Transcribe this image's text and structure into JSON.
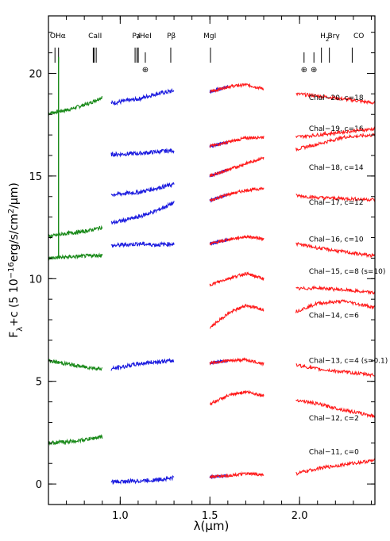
{
  "chart_data": {
    "type": "line",
    "title": "",
    "xlabel": "λ(μm)",
    "ylabel_main": "F",
    "ylabel_sub": "λ",
    "ylabel_rest": "+c (5 10",
    "ylabel_exp": "−16",
    "ylabel_units": "erg/s/cm",
    "ylabel_sq": "2",
    "ylabel_end": "/μm)",
    "xlim": [
      0.6,
      2.42
    ],
    "ylim": [
      -1.0,
      22.8
    ],
    "grid": false,
    "legend": "none",
    "x_ticks": [
      {
        "value": 1.0,
        "label": "1.0"
      },
      {
        "value": 1.5,
        "label": "1.5"
      },
      {
        "value": 2.0,
        "label": "2.0"
      }
    ],
    "y_ticks": [
      {
        "value": 0,
        "label": "0"
      },
      {
        "value": 5,
        "label": "5"
      },
      {
        "value": 10,
        "label": "10"
      },
      {
        "value": 15,
        "label": "15"
      },
      {
        "value": 20,
        "label": "20"
      }
    ],
    "colors": {
      "optical": "#1a8a1a",
      "j_band": "#1a1adf",
      "overlay": "#ff1a1a"
    },
    "line_markers": [
      {
        "label": "OI",
        "sub": "",
        "label_x": 0.63,
        "lines": [
          0.6364
        ]
      },
      {
        "label": "Hα",
        "sub": "",
        "label_x": 0.668,
        "lines": [
          0.6563
        ]
      },
      {
        "label": "CaII",
        "sub": "",
        "label_x": 0.86,
        "lines": [
          0.8498,
          0.8542,
          0.8662
        ]
      },
      {
        "label": "Pa",
        "sub": "",
        "label_x": 1.09,
        "lines": [
          1.0938,
          1.1008
        ]
      },
      {
        "label": "/HeI",
        "sub": "",
        "label_x": 1.135,
        "lines": [
          1.083
        ]
      },
      {
        "label": "Pβ",
        "sub": "",
        "label_x": 1.285,
        "lines": [
          1.2818
        ]
      },
      {
        "label": "MgI",
        "sub": "",
        "label_x": 1.5,
        "lines": [
          1.5034
        ]
      },
      {
        "label": "H",
        "sub": "2",
        "label_x": 2.14,
        "lines": [
          2.1218
        ]
      },
      {
        "label": "Brγ",
        "sub": "",
        "label_x": 2.19,
        "lines": [
          2.1661
        ]
      },
      {
        "label": "CO",
        "sub": "",
        "label_x": 2.33,
        "lines": [
          2.2935
        ]
      }
    ],
    "telluric_markers": [
      1.14,
      2.025,
      2.08
    ],
    "telluric_symbol": "⊕",
    "label_x": 2.03,
    "series": [
      {
        "name": "Chal−20, c=18",
        "c": 18,
        "label_y": 18.7,
        "optical": [
          [
            0.6,
            18.05
          ],
          [
            0.72,
            18.25
          ],
          [
            0.83,
            18.55
          ],
          [
            0.9,
            18.85
          ]
        ],
        "j": [
          [
            0.95,
            18.55
          ],
          [
            1.1,
            18.75
          ],
          [
            1.2,
            19.0
          ],
          [
            1.3,
            19.15
          ]
        ],
        "h": [
          [
            1.5,
            19.1
          ],
          [
            1.6,
            19.35
          ],
          [
            1.7,
            19.45
          ],
          [
            1.8,
            19.25
          ]
        ],
        "k": [
          [
            1.98,
            19.0
          ],
          [
            2.1,
            18.9
          ],
          [
            2.25,
            18.75
          ],
          [
            2.42,
            18.55
          ]
        ]
      },
      {
        "name": "Chal−19, c=16",
        "c": 16,
        "label_y": 17.2,
        "j": [
          [
            0.95,
            16.05
          ],
          [
            1.1,
            16.1
          ],
          [
            1.3,
            16.25
          ]
        ],
        "h": [
          [
            1.5,
            16.45
          ],
          [
            1.6,
            16.65
          ],
          [
            1.7,
            16.85
          ],
          [
            1.8,
            16.9
          ]
        ],
        "k": [
          [
            1.98,
            16.3
          ],
          [
            2.1,
            16.55
          ],
          [
            2.25,
            16.9
          ],
          [
            2.42,
            17.0
          ]
        ]
      },
      {
        "name": "Chal−18, c=14",
        "c": 14,
        "label_y": 15.3,
        "j": [
          [
            0.95,
            14.1
          ],
          [
            1.1,
            14.2
          ],
          [
            1.3,
            14.6
          ]
        ],
        "h": [
          [
            1.5,
            15.0
          ],
          [
            1.6,
            15.3
          ],
          [
            1.7,
            15.6
          ],
          [
            1.8,
            15.9
          ]
        ],
        "k": [
          [
            1.98,
            16.9
          ],
          [
            2.1,
            17.0
          ],
          [
            2.25,
            17.15
          ],
          [
            2.42,
            17.3
          ]
        ]
      },
      {
        "name": "Chal−17, c=12",
        "c": 12,
        "label_y": 13.6,
        "optical": [
          [
            0.6,
            12.05
          ],
          [
            0.7,
            12.2
          ],
          [
            0.8,
            12.3
          ],
          [
            0.9,
            12.5
          ]
        ],
        "j": [
          [
            0.95,
            12.7
          ],
          [
            1.1,
            13.0
          ],
          [
            1.2,
            13.3
          ],
          [
            1.3,
            13.7
          ]
        ],
        "h": [
          [
            1.5,
            13.8
          ],
          [
            1.6,
            14.1
          ],
          [
            1.7,
            14.3
          ],
          [
            1.8,
            14.4
          ]
        ],
        "k": [
          [
            1.98,
            14.05
          ],
          [
            2.1,
            13.95
          ],
          [
            2.25,
            13.9
          ],
          [
            2.42,
            13.85
          ]
        ]
      },
      {
        "name": "Chal−16, c=10",
        "c": 10,
        "label_y": 11.8,
        "optical": [
          [
            0.6,
            11.0
          ],
          [
            0.7,
            11.05
          ],
          [
            0.8,
            11.1
          ],
          [
            0.9,
            11.15
          ]
        ],
        "j": [
          [
            0.95,
            11.6
          ],
          [
            1.1,
            11.7
          ],
          [
            1.2,
            11.65
          ],
          [
            1.3,
            11.7
          ]
        ],
        "h": [
          [
            1.5,
            11.7
          ],
          [
            1.6,
            11.9
          ],
          [
            1.7,
            12.05
          ],
          [
            1.8,
            11.95
          ]
        ],
        "k": [
          [
            1.98,
            11.7
          ],
          [
            2.1,
            11.5
          ],
          [
            2.25,
            11.3
          ],
          [
            2.42,
            11.1
          ]
        ]
      },
      {
        "name": "Chal−15, c=8 (s=10)",
        "c": 8,
        "label_y": 10.25,
        "h": [
          [
            1.5,
            9.7
          ],
          [
            1.6,
            10.0
          ],
          [
            1.7,
            10.25
          ],
          [
            1.8,
            10.0
          ]
        ],
        "k": [
          [
            1.98,
            9.5
          ],
          [
            2.1,
            9.55
          ],
          [
            2.25,
            9.45
          ],
          [
            2.42,
            9.3
          ]
        ]
      },
      {
        "name": "Chal−14, c=6",
        "c": 6,
        "label_y": 8.1,
        "h": [
          [
            1.5,
            7.6
          ],
          [
            1.6,
            8.3
          ],
          [
            1.7,
            8.7
          ],
          [
            1.8,
            8.5
          ]
        ],
        "k": [
          [
            1.98,
            8.4
          ],
          [
            2.1,
            8.8
          ],
          [
            2.25,
            8.9
          ],
          [
            2.42,
            8.6
          ]
        ]
      },
      {
        "name": "Chal−13, c=4 (s=0.1)",
        "c": 4,
        "label_y": 5.9,
        "optical": [
          [
            0.6,
            6.0
          ],
          [
            0.7,
            5.85
          ],
          [
            0.8,
            5.7
          ],
          [
            0.9,
            5.6
          ]
        ],
        "j": [
          [
            0.95,
            5.6
          ],
          [
            1.1,
            5.85
          ],
          [
            1.2,
            5.95
          ],
          [
            1.3,
            6.0
          ]
        ],
        "h": [
          [
            1.5,
            5.9
          ],
          [
            1.6,
            6.0
          ],
          [
            1.7,
            6.05
          ],
          [
            1.8,
            5.85
          ]
        ],
        "k": [
          [
            1.98,
            5.8
          ],
          [
            2.1,
            5.6
          ],
          [
            2.25,
            5.45
          ],
          [
            2.42,
            5.3
          ]
        ]
      },
      {
        "name": "Chal−12, c=2",
        "c": 2,
        "label_y": 3.1,
        "h": [
          [
            1.5,
            3.9
          ],
          [
            1.6,
            4.3
          ],
          [
            1.7,
            4.5
          ],
          [
            1.8,
            4.3
          ]
        ],
        "k": [
          [
            1.98,
            4.1
          ],
          [
            2.1,
            3.9
          ],
          [
            2.25,
            3.6
          ],
          [
            2.42,
            3.3
          ]
        ]
      },
      {
        "name": "Chal−11, c=0",
        "c": 0,
        "label_y": 1.45,
        "optical": [
          [
            0.6,
            2.0
          ],
          [
            0.7,
            2.05
          ],
          [
            0.8,
            2.15
          ],
          [
            0.9,
            2.3
          ]
        ],
        "j": [
          [
            0.95,
            0.1
          ],
          [
            1.1,
            0.15
          ],
          [
            1.2,
            0.2
          ],
          [
            1.3,
            0.3
          ]
        ],
        "h": [
          [
            1.5,
            0.35
          ],
          [
            1.6,
            0.4
          ],
          [
            1.7,
            0.5
          ],
          [
            1.8,
            0.45
          ]
        ],
        "k": [
          [
            1.98,
            0.5
          ],
          [
            2.1,
            0.75
          ],
          [
            2.25,
            0.95
          ],
          [
            2.42,
            1.15
          ]
        ]
      }
    ],
    "spikes": [
      {
        "x": 0.6563,
        "y_from": 11.0,
        "y_to": 20.8
      }
    ]
  }
}
